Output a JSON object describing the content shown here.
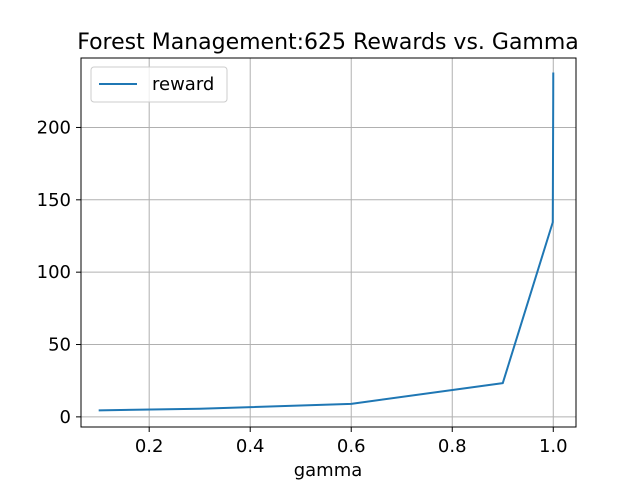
{
  "chart_data": {
    "type": "line",
    "title": "Forest Management:625 Rewards vs. Gamma",
    "xlabel": "gamma",
    "ylabel": "",
    "xlim": [
      0.065,
      1.045
    ],
    "ylim": [
      -7,
      248
    ],
    "xticks": [
      0.2,
      0.4,
      0.6,
      0.8,
      1.0
    ],
    "xtick_labels": [
      "0.2",
      "0.4",
      "0.6",
      "0.8",
      "1.0"
    ],
    "yticks": [
      0,
      50,
      100,
      150,
      200
    ],
    "ytick_labels": [
      "0",
      "50",
      "100",
      "150",
      "200"
    ],
    "grid": true,
    "legend": {
      "placement": "top-left",
      "entries": [
        "reward"
      ]
    },
    "series": [
      {
        "name": "reward",
        "color": "#1f77b4",
        "x": [
          0.1,
          0.3,
          0.6,
          0.9,
          0.999,
          0.9999,
          0.99999
        ],
        "y": [
          4.5,
          5.6,
          9.0,
          23.3,
          134.5,
          220.0,
          238.0
        ]
      }
    ]
  }
}
